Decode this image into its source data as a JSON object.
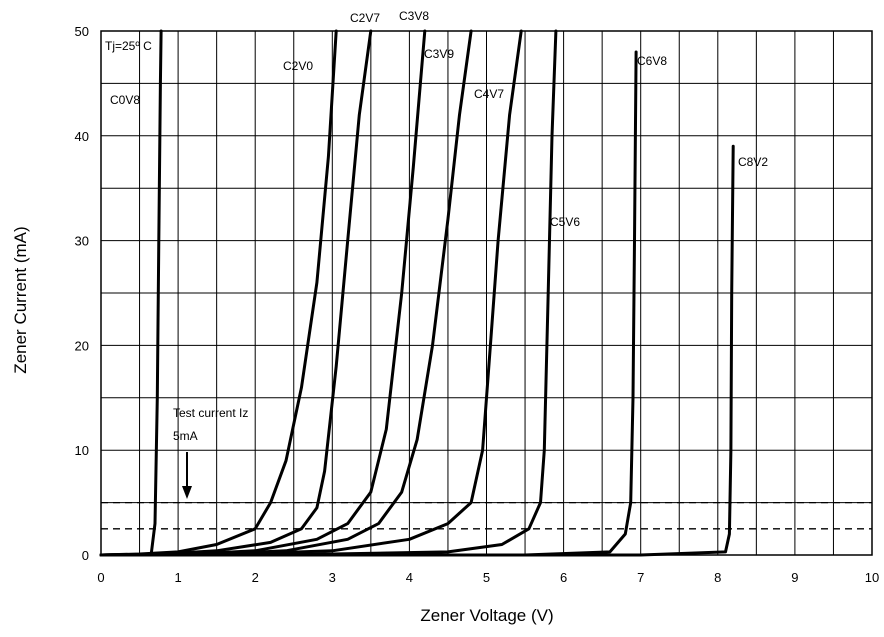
{
  "chart_data": {
    "type": "line",
    "title": "",
    "xlabel": "Zener Voltage (V)",
    "ylabel": "Zener Current (mA)",
    "xlim": [
      0,
      10
    ],
    "ylim": [
      0,
      50
    ],
    "xticks": [
      "0",
      "1",
      "2",
      "3",
      "4",
      "5",
      "6",
      "7",
      "8",
      "9",
      "10"
    ],
    "yticks": [
      "0",
      "10",
      "20",
      "30",
      "40",
      "50"
    ],
    "grid": true,
    "temperature_label": "Tj=25º C",
    "test_current_label_line1": "Test current Iz",
    "test_current_label_line2": "5mA",
    "reference_lines": [
      5,
      2.5
    ],
    "series": [
      {
        "name": "C0V8",
        "points": [
          [
            0,
            0
          ],
          [
            0.65,
            0
          ],
          [
            0.7,
            3
          ],
          [
            0.73,
            15
          ],
          [
            0.75,
            30
          ],
          [
            0.77,
            45
          ],
          [
            0.78,
            50
          ]
        ]
      },
      {
        "name": "C2V0",
        "points": [
          [
            0,
            0
          ],
          [
            0.5,
            0.1
          ],
          [
            1.0,
            0.3
          ],
          [
            1.5,
            1.0
          ],
          [
            2.0,
            2.5
          ],
          [
            2.2,
            5
          ],
          [
            2.4,
            9
          ],
          [
            2.6,
            16
          ],
          [
            2.8,
            26
          ],
          [
            2.95,
            38
          ],
          [
            3.05,
            50
          ]
        ]
      },
      {
        "name": "C2V7",
        "points": [
          [
            0,
            0
          ],
          [
            0.8,
            0.1
          ],
          [
            1.5,
            0.4
          ],
          [
            2.2,
            1.2
          ],
          [
            2.6,
            2.5
          ],
          [
            2.8,
            4.5
          ],
          [
            2.9,
            8
          ],
          [
            3.05,
            18
          ],
          [
            3.2,
            30
          ],
          [
            3.35,
            42
          ],
          [
            3.5,
            50
          ]
        ]
      },
      {
        "name": "C3V8",
        "points": [
          [
            0,
            0
          ],
          [
            1.2,
            0.1
          ],
          [
            2.0,
            0.4
          ],
          [
            2.8,
            1.5
          ],
          [
            3.2,
            3
          ],
          [
            3.5,
            6
          ],
          [
            3.7,
            12
          ],
          [
            3.9,
            25
          ],
          [
            4.05,
            37
          ],
          [
            4.2,
            50
          ]
        ]
      },
      {
        "name": "C3V9",
        "points": [
          [
            0,
            0
          ],
          [
            1.5,
            0.1
          ],
          [
            2.4,
            0.4
          ],
          [
            3.2,
            1.5
          ],
          [
            3.6,
            3
          ],
          [
            3.9,
            6
          ],
          [
            4.1,
            11
          ],
          [
            4.3,
            20
          ],
          [
            4.5,
            32
          ],
          [
            4.65,
            42
          ],
          [
            4.8,
            50
          ]
        ]
      },
      {
        "name": "C4V7",
        "points": [
          [
            0,
            0
          ],
          [
            1.8,
            0.1
          ],
          [
            3.0,
            0.4
          ],
          [
            4.0,
            1.5
          ],
          [
            4.5,
            3
          ],
          [
            4.8,
            5
          ],
          [
            4.95,
            10
          ],
          [
            5.05,
            20
          ],
          [
            5.15,
            30
          ],
          [
            5.3,
            42
          ],
          [
            5.45,
            50
          ]
        ]
      },
      {
        "name": "C5V6",
        "points": [
          [
            0,
            0
          ],
          [
            3.0,
            0.1
          ],
          [
            4.5,
            0.3
          ],
          [
            5.2,
            1
          ],
          [
            5.55,
            2.5
          ],
          [
            5.7,
            5
          ],
          [
            5.75,
            10
          ],
          [
            5.8,
            25
          ],
          [
            5.85,
            40
          ],
          [
            5.9,
            50
          ]
        ]
      },
      {
        "name": "C6V8",
        "points": [
          [
            0,
            0
          ],
          [
            5.5,
            0
          ],
          [
            6.6,
            0.3
          ],
          [
            6.8,
            2
          ],
          [
            6.87,
            5
          ],
          [
            6.9,
            15
          ],
          [
            6.92,
            30
          ],
          [
            6.94,
            48
          ]
        ]
      },
      {
        "name": "C8V2",
        "points": [
          [
            0,
            0
          ],
          [
            7,
            0
          ],
          [
            8.1,
            0.3
          ],
          [
            8.15,
            2
          ],
          [
            8.17,
            10
          ],
          [
            8.18,
            25
          ],
          [
            8.2,
            39
          ]
        ]
      }
    ]
  }
}
